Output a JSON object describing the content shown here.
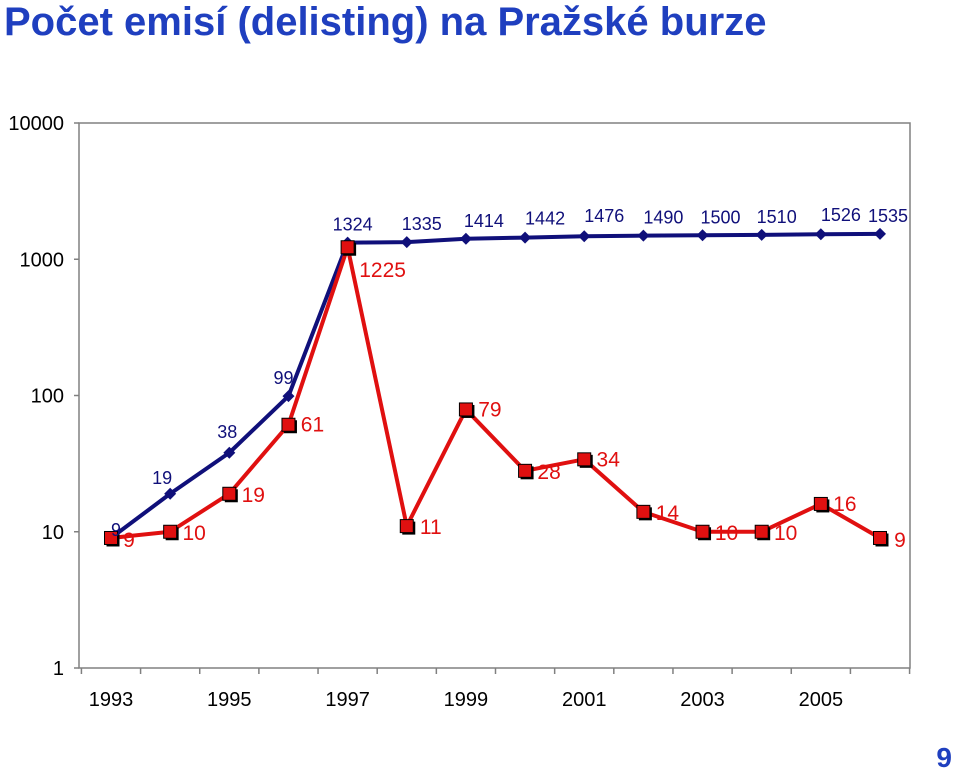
{
  "title": "Počet emisí (delisting) na Pražské burze",
  "page_number": "9",
  "chart_data": {
    "type": "line",
    "y_scale": "log",
    "ylim": [
      1,
      10000
    ],
    "y_ticks": [
      "1",
      "10",
      "100",
      "1000",
      "10000"
    ],
    "x": [
      1993,
      1994,
      1995,
      1996,
      1997,
      1998,
      1999,
      2000,
      2001,
      2002,
      2003,
      2004,
      2005,
      2006
    ],
    "x_tick_labels": [
      "1993",
      "1995",
      "1997",
      "1999",
      "2001",
      "2003",
      "2005"
    ],
    "grid": "none",
    "legend": "none",
    "series": [
      {
        "color": "#10107a",
        "marker": "diamond",
        "values": [
          9,
          19,
          38,
          99,
          1324,
          1335,
          1414,
          1442,
          1476,
          1490,
          1500,
          1510,
          1526,
          1535
        ],
        "labels": [
          "9",
          "19",
          "38",
          "99",
          "1324",
          "1335",
          "1414",
          "1442",
          "1476",
          "1490",
          "1500",
          "1510",
          "1526",
          "1535"
        ]
      },
      {
        "color": "#e01010",
        "marker": "square",
        "values": [
          9,
          10,
          19,
          61,
          1225,
          11,
          79,
          28,
          34,
          14,
          10,
          10,
          16,
          9
        ],
        "labels": [
          "9",
          "10",
          "19",
          "61",
          "1225",
          "11",
          "79",
          "28",
          "34",
          "14",
          "10",
          "10",
          "16",
          "9"
        ]
      }
    ]
  }
}
